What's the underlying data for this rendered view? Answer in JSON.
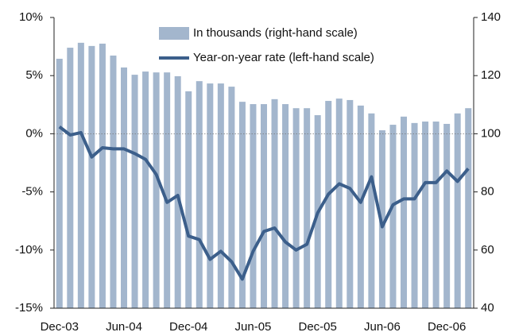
{
  "chart_data": {
    "type": "bar-line",
    "categories": [
      "Dec-03",
      null,
      null,
      null,
      null,
      null,
      "Jun-04",
      null,
      null,
      null,
      null,
      null,
      "Dec-04",
      null,
      null,
      null,
      null,
      null,
      "Jun-05",
      null,
      null,
      null,
      null,
      null,
      "Dec-05",
      null,
      null,
      null,
      null,
      null,
      "Jun-06",
      null,
      null,
      null,
      null,
      null,
      "Dec-06",
      null,
      null
    ],
    "series": [
      {
        "name": "In thousands (right-hand scale)",
        "type": "bar",
        "axis": "y2",
        "color": "#a3b6cd",
        "values": [
          125.8,
          129.6,
          131.3,
          130.2,
          131,
          126.9,
          122.8,
          120.3,
          121.4,
          121.1,
          121.1,
          119.8,
          114.6,
          118.1,
          117.3,
          117.3,
          116.2,
          111,
          110.2,
          110.2,
          111.9,
          110.2,
          108.8,
          108.8,
          106.4,
          111.3,
          112.1,
          111.6,
          109.7,
          107,
          101.2,
          103.1,
          105.9,
          103.7,
          104.2,
          104.2,
          103.4,
          107,
          108.8
        ]
      },
      {
        "name": "Year-on-year rate (left-hand scale)",
        "type": "line",
        "axis": "y",
        "color": "#3c5f8b",
        "values": [
          0.6,
          -0.1,
          0.1,
          -2.0,
          -1.2,
          -1.3,
          -1.3,
          -1.7,
          -2.2,
          -3.5,
          -5.9,
          -5.3,
          -8.8,
          -9.1,
          -10.8,
          -10.1,
          -11.0,
          -12.5,
          -10.1,
          -8.4,
          -8.1,
          -9.3,
          -10.0,
          -9.5,
          -6.8,
          -5.2,
          -4.3,
          -4.7,
          -5.9,
          -3.7,
          -8.0,
          -6.1,
          -5.6,
          -5.6,
          -4.2,
          -4.2,
          -3.2,
          -4.1,
          -3.0
        ]
      }
    ],
    "ylim": [
      -15,
      10
    ],
    "yticks": [
      {
        "value": 10,
        "label": "10%"
      },
      {
        "value": 5,
        "label": "5%"
      },
      {
        "value": 0,
        "label": "0%"
      },
      {
        "value": -5,
        "label": "-5%"
      },
      {
        "value": -10,
        "label": "-10%"
      },
      {
        "value": -15,
        "label": "-15%"
      }
    ],
    "y2lim": [
      40,
      140
    ],
    "y2ticks": [
      140,
      120,
      100,
      80,
      60,
      40
    ],
    "legend": "top"
  }
}
